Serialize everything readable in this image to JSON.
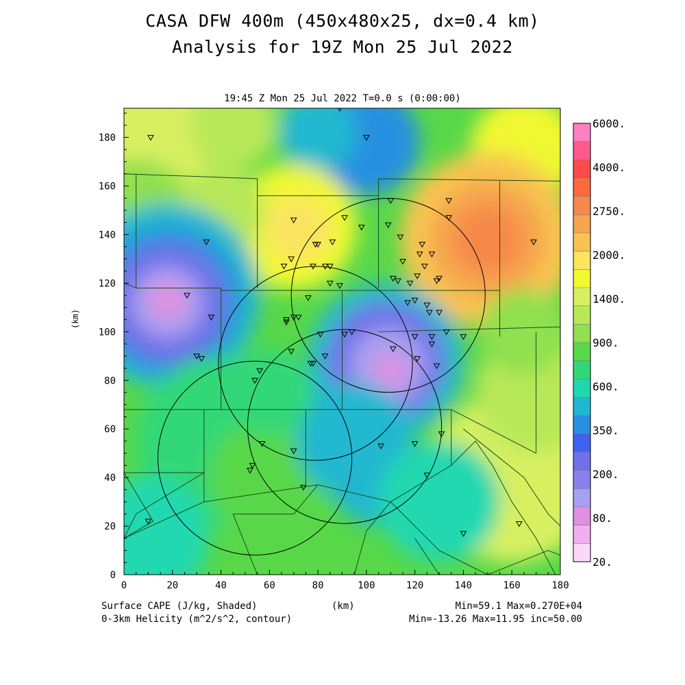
{
  "header": {
    "title": "CASA DFW 400m (450x480x25, dx=0.4 km)",
    "subtitle": "Analysis for 19Z Mon 25 Jul 2022",
    "time_label": "19:45 Z Mon 25 Jul 2022    T=0.0 s (0:00:00)"
  },
  "footer": {
    "field1": "Surface CAPE (J/kg, Shaded)",
    "field2": "0-3km Helicity (m^2/s^2, contour)",
    "xunit": "(km)",
    "stats1": "Min=59.1 Max=0.270E+04",
    "stats2": "Min=-13.26 Max=11.95 inc=50.00"
  },
  "axes": {
    "ylabel": "(km)",
    "x_ticks": [
      "0",
      "20",
      "40",
      "60",
      "80",
      "100",
      "120",
      "140",
      "160",
      "180"
    ],
    "y_ticks": [
      "0",
      "20",
      "40",
      "60",
      "80",
      "100",
      "120",
      "140",
      "160",
      "180"
    ],
    "x_range": [
      0,
      180
    ],
    "y_range": [
      0,
      192
    ]
  },
  "colorbar": {
    "labels": [
      "6000.",
      "4000.",
      "2750.",
      "2000.",
      "1400.",
      "900.",
      "600.",
      "350.",
      "200.",
      "80.",
      "20."
    ],
    "colors": [
      "#ff80c0",
      "#ff5a8c",
      "#ff4a4a",
      "#fc6a3c",
      "#f5884a",
      "#f6a44e",
      "#f8c450",
      "#fae460",
      "#f0f830",
      "#d8f060",
      "#b8e858",
      "#90e050",
      "#58d848",
      "#30d878",
      "#20d8b0",
      "#20b8d0",
      "#2890e0",
      "#4060f0",
      "#7070e8",
      "#8880f0",
      "#a8a0f0",
      "#e090e0",
      "#f0b0f0",
      "#fad8fa"
    ]
  },
  "map": {
    "cape_blobs": [
      {
        "x": 10,
        "y": 180,
        "r": 28,
        "color": "#d8f060"
      },
      {
        "x": 100,
        "y": 178,
        "r": 22,
        "color": "#2890e0"
      },
      {
        "x": 80,
        "y": 182,
        "r": 16,
        "color": "#20b8d0"
      },
      {
        "x": 45,
        "y": 185,
        "r": 18,
        "color": "#b8e858"
      },
      {
        "x": 165,
        "y": 175,
        "r": 22,
        "color": "#f0f830"
      },
      {
        "x": 150,
        "y": 138,
        "r": 36,
        "color": "#f8c450"
      },
      {
        "x": 150,
        "y": 138,
        "r": 24,
        "color": "#f6a44e"
      },
      {
        "x": 150,
        "y": 138,
        "r": 14,
        "color": "#f5884a"
      },
      {
        "x": 70,
        "y": 143,
        "r": 26,
        "color": "#f0f830"
      },
      {
        "x": 72,
        "y": 142,
        "r": 14,
        "color": "#fae460"
      },
      {
        "x": 5,
        "y": 145,
        "r": 26,
        "color": "#90e050"
      },
      {
        "x": 40,
        "y": 150,
        "r": 18,
        "color": "#b8e858"
      },
      {
        "x": 18,
        "y": 115,
        "r": 38,
        "color": "#20b8d0"
      },
      {
        "x": 18,
        "y": 113,
        "r": 30,
        "color": "#2890e0"
      },
      {
        "x": 18,
        "y": 112,
        "r": 24,
        "color": "#7070e8"
      },
      {
        "x": 18,
        "y": 112,
        "r": 15,
        "color": "#a8a0f0"
      },
      {
        "x": 18,
        "y": 113,
        "r": 8,
        "color": "#e090e0"
      },
      {
        "x": 108,
        "y": 88,
        "r": 32,
        "color": "#20b8d0"
      },
      {
        "x": 108,
        "y": 88,
        "r": 24,
        "color": "#7070e8"
      },
      {
        "x": 109,
        "y": 86,
        "r": 16,
        "color": "#a8a0f0"
      },
      {
        "x": 110,
        "y": 84,
        "r": 7,
        "color": "#e090e0"
      },
      {
        "x": 40,
        "y": 55,
        "r": 35,
        "color": "#30d878"
      },
      {
        "x": 60,
        "y": 40,
        "r": 25,
        "color": "#58d848"
      },
      {
        "x": 95,
        "y": 55,
        "r": 24,
        "color": "#20b8d0"
      },
      {
        "x": 105,
        "y": 40,
        "r": 20,
        "color": "#20b8d0"
      },
      {
        "x": 160,
        "y": 40,
        "r": 35,
        "color": "#d8f060"
      },
      {
        "x": 170,
        "y": 75,
        "r": 25,
        "color": "#b8e858"
      },
      {
        "x": 165,
        "y": 100,
        "r": 18,
        "color": "#90e050"
      },
      {
        "x": 10,
        "y": 15,
        "r": 25,
        "color": "#20d8b0"
      },
      {
        "x": 130,
        "y": 30,
        "r": 25,
        "color": "#20d8b0"
      },
      {
        "x": 60,
        "y": 75,
        "r": 18,
        "color": "#30d878"
      }
    ],
    "range_rings": [
      {
        "cx": 109,
        "cy": 115,
        "r": 40
      },
      {
        "cx": 79,
        "cy": 87,
        "r": 40
      },
      {
        "cx": 91,
        "cy": 61,
        "r": 40
      },
      {
        "cx": 54,
        "cy": 48,
        "r": 40
      }
    ],
    "stations": [
      [
        11,
        180
      ],
      [
        89,
        192
      ],
      [
        100,
        180
      ],
      [
        110,
        154
      ],
      [
        134,
        154
      ],
      [
        134,
        147
      ],
      [
        109,
        144
      ],
      [
        91,
        147
      ],
      [
        98,
        143
      ],
      [
        70,
        146
      ],
      [
        79,
        136
      ],
      [
        80,
        136
      ],
      [
        86,
        137
      ],
      [
        114,
        139
      ],
      [
        123,
        136
      ],
      [
        122,
        132
      ],
      [
        127,
        132
      ],
      [
        34,
        137
      ],
      [
        69,
        130
      ],
      [
        66,
        127
      ],
      [
        83,
        127
      ],
      [
        85,
        127
      ],
      [
        78,
        127
      ],
      [
        115,
        129
      ],
      [
        124,
        127
      ],
      [
        111,
        122
      ],
      [
        113,
        121
      ],
      [
        118,
        120
      ],
      [
        121,
        123
      ],
      [
        129,
        121
      ],
      [
        130,
        122
      ],
      [
        85,
        120
      ],
      [
        89,
        119
      ],
      [
        26,
        115
      ],
      [
        117,
        112
      ],
      [
        120,
        113
      ],
      [
        125,
        111
      ],
      [
        130,
        108
      ],
      [
        126,
        108
      ],
      [
        76,
        114
      ],
      [
        72,
        106
      ],
      [
        70,
        106
      ],
      [
        36,
        106
      ],
      [
        67,
        104
      ],
      [
        67,
        105
      ],
      [
        133,
        100
      ],
      [
        127,
        98
      ],
      [
        94,
        100
      ],
      [
        91,
        99
      ],
      [
        81,
        99
      ],
      [
        120,
        98
      ],
      [
        140,
        98
      ],
      [
        111,
        93
      ],
      [
        30,
        90
      ],
      [
        32,
        89
      ],
      [
        69,
        92
      ],
      [
        83,
        90
      ],
      [
        78,
        87
      ],
      [
        77,
        87
      ],
      [
        121,
        89
      ],
      [
        129,
        86
      ],
      [
        127,
        95
      ],
      [
        56,
        84
      ],
      [
        54,
        80
      ],
      [
        131,
        58
      ],
      [
        120,
        54
      ],
      [
        70,
        51
      ],
      [
        57,
        54
      ],
      [
        106,
        53
      ],
      [
        53,
        45
      ],
      [
        52,
        43
      ],
      [
        74,
        36
      ],
      [
        125,
        41
      ],
      [
        10,
        22
      ],
      [
        140,
        17
      ],
      [
        163,
        21
      ],
      [
        169,
        137
      ]
    ],
    "county_lines": [
      [
        [
          0,
          165
        ],
        [
          55,
          163
        ],
        [
          55,
          156
        ],
        [
          105,
          156
        ],
        [
          105,
          163
        ],
        [
          180,
          162
        ]
      ],
      [
        [
          5,
          165
        ],
        [
          5,
          118
        ],
        [
          40,
          118
        ],
        [
          40,
          97
        ]
      ],
      [
        [
          55,
          156
        ],
        [
          55,
          118
        ]
      ],
      [
        [
          105,
          156
        ],
        [
          105,
          118
        ]
      ],
      [
        [
          155,
          162
        ],
        [
          155,
          98
        ]
      ],
      [
        [
          40,
          117
        ],
        [
          105,
          117
        ]
      ],
      [
        [
          90,
          117
        ],
        [
          90,
          68
        ]
      ],
      [
        [
          105,
          117
        ],
        [
          155,
          117
        ],
        [
          155,
          98
        ]
      ],
      [
        [
          180,
          102
        ],
        [
          105,
          100
        ]
      ],
      [
        [
          170,
          100
        ],
        [
          170,
          50
        ]
      ],
      [
        [
          40,
          97
        ],
        [
          40,
          68
        ],
        [
          0,
          68
        ]
      ],
      [
        [
          40,
          68
        ],
        [
          135,
          68
        ]
      ],
      [
        [
          135,
          68
        ],
        [
          170,
          50
        ]
      ],
      [
        [
          33,
          68
        ],
        [
          33,
          42
        ],
        [
          0,
          42
        ]
      ],
      [
        [
          33,
          42
        ],
        [
          5,
          25
        ],
        [
          0,
          15
        ]
      ],
      [
        [
          33,
          30
        ],
        [
          0,
          15
        ]
      ],
      [
        [
          33,
          30
        ],
        [
          33,
          42
        ]
      ],
      [
        [
          33,
          30
        ],
        [
          80,
          37
        ],
        [
          110,
          30
        ],
        [
          135,
          45
        ],
        [
          135,
          68
        ]
      ],
      [
        [
          45,
          25
        ],
        [
          55,
          0
        ]
      ],
      [
        [
          45,
          25
        ],
        [
          70,
          25
        ],
        [
          80,
          37
        ]
      ],
      [
        [
          0,
          42
        ],
        [
          12,
          22
        ],
        [
          0,
          15
        ]
      ],
      [
        [
          75,
          37
        ],
        [
          75,
          68
        ]
      ],
      [
        [
          95,
          0
        ],
        [
          100,
          18
        ],
        [
          110,
          30
        ]
      ],
      [
        [
          110,
          30
        ],
        [
          130,
          10
        ],
        [
          150,
          0
        ]
      ],
      [
        [
          135,
          45
        ],
        [
          145,
          55
        ],
        [
          152,
          45
        ],
        [
          160,
          30
        ],
        [
          170,
          15
        ],
        [
          178,
          0
        ]
      ],
      [
        [
          140,
          60
        ],
        [
          150,
          52
        ],
        [
          165,
          40
        ],
        [
          175,
          25
        ],
        [
          180,
          20
        ]
      ],
      [
        [
          150,
          0
        ],
        [
          175,
          10
        ],
        [
          180,
          8
        ]
      ],
      [
        [
          0,
          120
        ],
        [
          5,
          118
        ]
      ],
      [
        [
          130,
          0
        ],
        [
          120,
          15
        ]
      ]
    ]
  }
}
